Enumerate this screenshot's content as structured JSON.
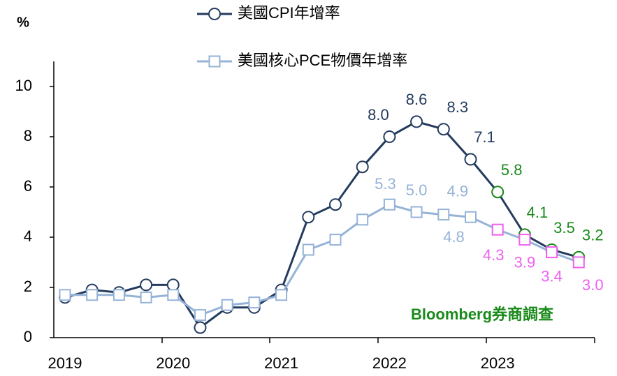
{
  "chart_data": {
    "type": "line",
    "y_label": "%",
    "annotation": "Bloomberg券商調查",
    "annotation_color": "#1a8a1a",
    "categories": [
      "2019",
      null,
      null,
      null,
      "2020",
      null,
      null,
      null,
      "2021",
      null,
      null,
      null,
      "2022",
      null,
      null,
      null,
      "2023",
      null,
      null,
      null
    ],
    "ylim": [
      0,
      11
    ],
    "yticks": [
      0,
      2,
      4,
      6,
      8,
      10
    ],
    "series": [
      {
        "name": "美國CPI年增率",
        "color": "#243b5e",
        "values": [
          1.6,
          1.9,
          1.8,
          2.1,
          2.1,
          0.4,
          1.2,
          1.2,
          1.9,
          4.8,
          5.3,
          6.8,
          8.0,
          8.6,
          8.3,
          7.1,
          5.8,
          4.1,
          3.5,
          3.2
        ],
        "value_labels": [
          null,
          null,
          null,
          null,
          null,
          null,
          null,
          null,
          null,
          null,
          null,
          null,
          "8.0",
          "8.6",
          "8.3",
          "7.1",
          "5.8",
          "4.1",
          "3.5",
          "3.2"
        ],
        "marker_colors": [
          "#243b5e",
          "#243b5e",
          "#243b5e",
          "#243b5e",
          "#243b5e",
          "#243b5e",
          "#243b5e",
          "#243b5e",
          "#243b5e",
          "#243b5e",
          "#243b5e",
          "#243b5e",
          "#243b5e",
          "#243b5e",
          "#243b5e",
          "#243b5e",
          "#1a8a1a",
          "#1a8a1a",
          "#1a8a1a",
          "#1a8a1a"
        ]
      },
      {
        "name": "美國核心PCE物價年增率",
        "color": "#95b3d7",
        "values": [
          1.7,
          1.7,
          1.7,
          1.6,
          1.7,
          0.9,
          1.3,
          1.4,
          1.7,
          3.5,
          3.9,
          4.7,
          5.3,
          5.0,
          4.9,
          4.8,
          4.3,
          3.9,
          3.4,
          3.0
        ],
        "value_labels": [
          null,
          null,
          null,
          null,
          null,
          null,
          null,
          null,
          null,
          null,
          null,
          null,
          "5.3",
          "5.0",
          "4.9",
          "4.8",
          "4.3",
          "3.9",
          "3.4",
          "3.0"
        ],
        "marker_colors": [
          "#95b3d7",
          "#95b3d7",
          "#95b3d7",
          "#95b3d7",
          "#95b3d7",
          "#95b3d7",
          "#95b3d7",
          "#95b3d7",
          "#95b3d7",
          "#95b3d7",
          "#95b3d7",
          "#95b3d7",
          "#95b3d7",
          "#95b3d7",
          "#95b3d7",
          "#95b3d7",
          "#f060f0",
          "#f060f0",
          "#f060f0",
          "#f060f0"
        ]
      }
    ]
  }
}
